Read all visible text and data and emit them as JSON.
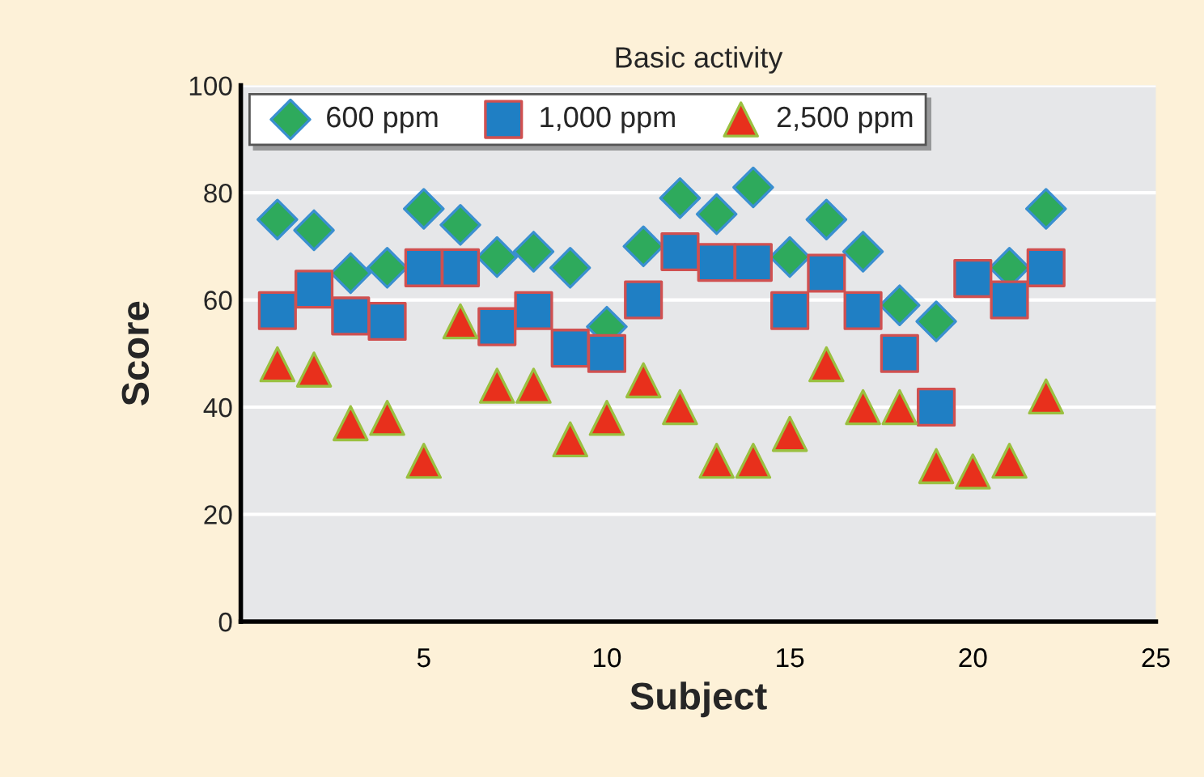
{
  "chart_data": {
    "type": "scatter",
    "title": "Basic activity",
    "xlabel": "Subject",
    "ylabel": "Score",
    "x": [
      1,
      2,
      3,
      4,
      5,
      6,
      7,
      8,
      9,
      10,
      11,
      12,
      13,
      14,
      15,
      16,
      17,
      18,
      19,
      20,
      21,
      22
    ],
    "series": [
      {
        "name": "600 ppm",
        "color": "#2eaa5c",
        "marker": "diamond",
        "values": [
          75,
          73,
          65,
          66,
          77,
          74,
          68,
          69,
          66,
          55,
          70,
          79,
          76,
          81,
          68,
          75,
          69,
          59,
          56,
          null,
          66,
          77
        ]
      },
      {
        "name": "1,000 ppm",
        "color": "#1f7fc4",
        "marker": "square",
        "values": [
          58,
          62,
          57,
          56,
          66,
          66,
          55,
          58,
          51,
          50,
          60,
          69,
          67,
          67,
          58,
          65,
          58,
          50,
          40,
          64,
          60,
          66
        ]
      },
      {
        "name": "2,500 ppm",
        "color": "#e8301c",
        "marker": "triangle",
        "values": [
          48,
          47,
          37,
          38,
          30,
          56,
          44,
          44,
          34,
          38,
          45,
          40,
          30,
          30,
          35,
          48,
          40,
          40,
          29,
          28,
          30,
          42
        ]
      }
    ],
    "xlim": [
      0,
      25
    ],
    "xticks": [
      5,
      10,
      15,
      20,
      25
    ],
    "ylim": [
      0,
      100
    ],
    "yticks": [
      0,
      20,
      40,
      60,
      80,
      100
    ],
    "grid": "y",
    "legend": "top left"
  }
}
